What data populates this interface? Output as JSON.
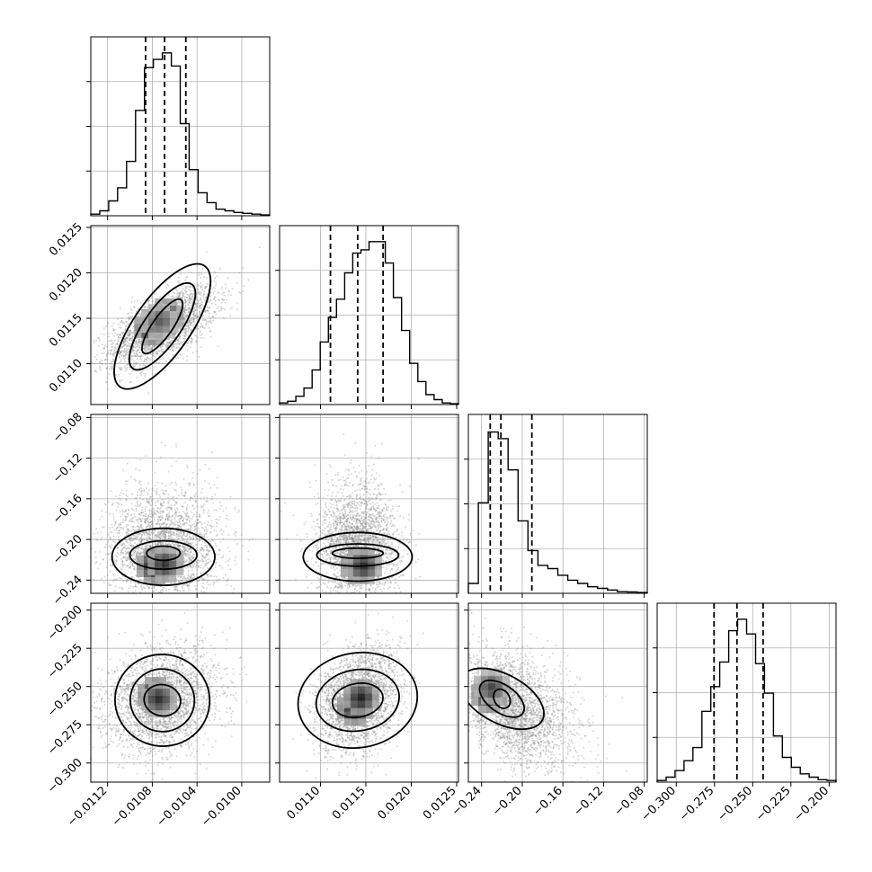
{
  "chart_data": {
    "type": "corner",
    "description_of_panels": "lower-triangle 2D histograms with scatter and contours; diagonal 1D histograms with 16/50/84 percentile dashed lines",
    "grid": true,
    "parameters": [
      {
        "range": [
          -0.01135,
          -0.00975
        ],
        "ticks": [
          -0.0112,
          -0.0108,
          -0.0104,
          -0.01
        ],
        "tick_labels": [
          "−0.0112",
          "−0.0108",
          "−0.0104",
          "−0.0100"
        ],
        "quantiles": [
          -0.01086,
          -0.01069,
          -0.0105
        ],
        "hist": [
          0.01,
          0.03,
          0.09,
          0.17,
          0.33,
          0.64,
          0.9,
          0.95,
          0.99,
          0.91,
          0.56,
          0.28,
          0.14,
          0.08,
          0.04,
          0.03,
          0.02,
          0.015,
          0.01,
          0.005
        ]
      },
      {
        "range": [
          0.01055,
          0.01252
        ],
        "ticks": [
          0.011,
          0.0115,
          0.012,
          0.0125
        ],
        "tick_labels": [
          "0.0110",
          "0.0115",
          "0.0120",
          "0.0125"
        ],
        "quantiles": [
          0.01111,
          0.01141,
          0.01169
        ],
        "hist": [
          0.01,
          0.02,
          0.05,
          0.1,
          0.21,
          0.38,
          0.53,
          0.64,
          0.8,
          0.92,
          0.94,
          0.99,
          0.99,
          0.86,
          0.65,
          0.45,
          0.25,
          0.14,
          0.06,
          0.03,
          0.01,
          0.005
        ]
      },
      {
        "range": [
          -0.253,
          -0.077
        ],
        "ticks": [
          -0.24,
          -0.2,
          -0.16,
          -0.12,
          -0.08
        ],
        "tick_labels": [
          "−0.24",
          "−0.20",
          "−0.16",
          "−0.12",
          "−0.08"
        ],
        "quantiles": [
          -0.2315,
          -0.221,
          -0.1905
        ],
        "hist": [
          0.06,
          0.55,
          0.98,
          0.94,
          0.75,
          0.44,
          0.26,
          0.17,
          0.15,
          0.11,
          0.08,
          0.06,
          0.04,
          0.03,
          0.02,
          0.01,
          0.008,
          0.005
        ]
      },
      {
        "range": [
          -0.3125,
          -0.1955
        ],
        "ticks": [
          -0.3,
          -0.275,
          -0.25,
          -0.225,
          -0.2
        ],
        "tick_labels": [
          "−0.300",
          "−0.275",
          "−0.250",
          "−0.225",
          "−0.200"
        ],
        "quantiles": [
          -0.2753,
          -0.2603,
          -0.2432
        ],
        "hist": [
          0.01,
          0.03,
          0.07,
          0.13,
          0.21,
          0.43,
          0.58,
          0.73,
          0.92,
          0.99,
          0.9,
          0.72,
          0.54,
          0.28,
          0.15,
          0.09,
          0.05,
          0.03,
          0.015,
          0.01
        ]
      }
    ],
    "pairs": [
      {
        "x": 0,
        "y": 1,
        "mean": [
          -0.01071,
          0.01141
        ],
        "std": [
          0.00024,
          0.00022
        ],
        "rho": 0.62,
        "contours": [
          {
            "dx": 0.00029,
            "dy": 0.00011,
            "rot": 55
          },
          {
            "dx": 0.00046,
            "dy": 0.0002,
            "rot": 55
          },
          {
            "dx": 0.00066,
            "dy": 0.00031,
            "rot": 55
          }
        ],
        "peaks": [
          [
            -0.0108,
            0.0114,
            1.0
          ],
          [
            -0.01068,
            0.01152,
            0.85
          ],
          [
            -0.01074,
            0.01146,
            0.6
          ]
        ]
      },
      {
        "x": 0,
        "y": 2,
        "mean": [
          -0.0107,
          -0.21
        ],
        "std": [
          0.00025,
          0.025
        ],
        "rho": 0.0,
        "contours": [
          {
            "dx": 0.00015,
            "dy": 0.007,
            "rot": 0
          },
          {
            "dx": 0.0003,
            "dy": 0.014,
            "rot": 0
          },
          {
            "dx": 0.00046,
            "dy": 0.028,
            "rot": 0
          }
        ],
        "peaks": [
          [
            -0.01078,
            -0.2265,
            1.0
          ],
          [
            -0.01068,
            -0.2245,
            0.8
          ]
        ]
      },
      {
        "x": 0,
        "y": 3,
        "mean": [
          -0.01071,
          -0.259
        ],
        "std": [
          0.00025,
          0.017
        ],
        "rho": 0.2,
        "contours": [
          {
            "dx": 0.00014,
            "dy": 0.012,
            "rot": 80
          },
          {
            "dx": 0.00028,
            "dy": 0.021,
            "rot": 80
          },
          {
            "dx": 0.00041,
            "dy": 0.031,
            "rot": 80
          }
        ],
        "peaks": [
          [
            -0.01077,
            -0.2555,
            1.0
          ],
          [
            -0.01074,
            -0.2585,
            0.8
          ]
        ]
      },
      {
        "x": 1,
        "y": 2,
        "mean": [
          0.01141,
          -0.21
        ],
        "std": [
          0.00022,
          0.025
        ],
        "rho": 0.05,
        "contours": [
          {
            "dx": 0.00028,
            "dy": 0.005,
            "rot": 0
          },
          {
            "dx": 0.00045,
            "dy": 0.011,
            "rot": 0
          },
          {
            "dx": 0.0006,
            "dy": 0.024,
            "rot": 0
          }
        ],
        "peaks": [
          [
            0.01142,
            -0.2262,
            1.0
          ],
          [
            0.01148,
            -0.226,
            0.8
          ]
        ]
      },
      {
        "x": 1,
        "y": 3,
        "mean": [
          0.01141,
          -0.259
        ],
        "std": [
          0.00022,
          0.017
        ],
        "rho": 0.25,
        "contours": [
          {
            "dx": 0.00028,
            "dy": 0.011,
            "rot": 10
          },
          {
            "dx": 0.00046,
            "dy": 0.02,
            "rot": 10
          },
          {
            "dx": 0.00066,
            "dy": 0.031,
            "rot": 10
          }
        ],
        "peaks": [
          [
            0.01138,
            -0.264,
            1.0
          ],
          [
            0.01145,
            -0.257,
            0.9
          ]
        ]
      },
      {
        "x": 2,
        "y": 3,
        "mean": [
          -0.22,
          -0.258
        ],
        "std": [
          0.025,
          0.017
        ],
        "rho": -0.55,
        "contours": [
          {
            "dx": 0.01,
            "dy": 0.005,
            "rot": -60
          },
          {
            "dx": 0.025,
            "dy": 0.009,
            "rot": -35
          },
          {
            "dx": 0.045,
            "dy": 0.016,
            "rot": -28
          }
        ],
        "peaks": [
          [
            -0.2325,
            -0.2555,
            1.0
          ],
          [
            -0.23,
            -0.25,
            0.7
          ]
        ]
      }
    ]
  }
}
